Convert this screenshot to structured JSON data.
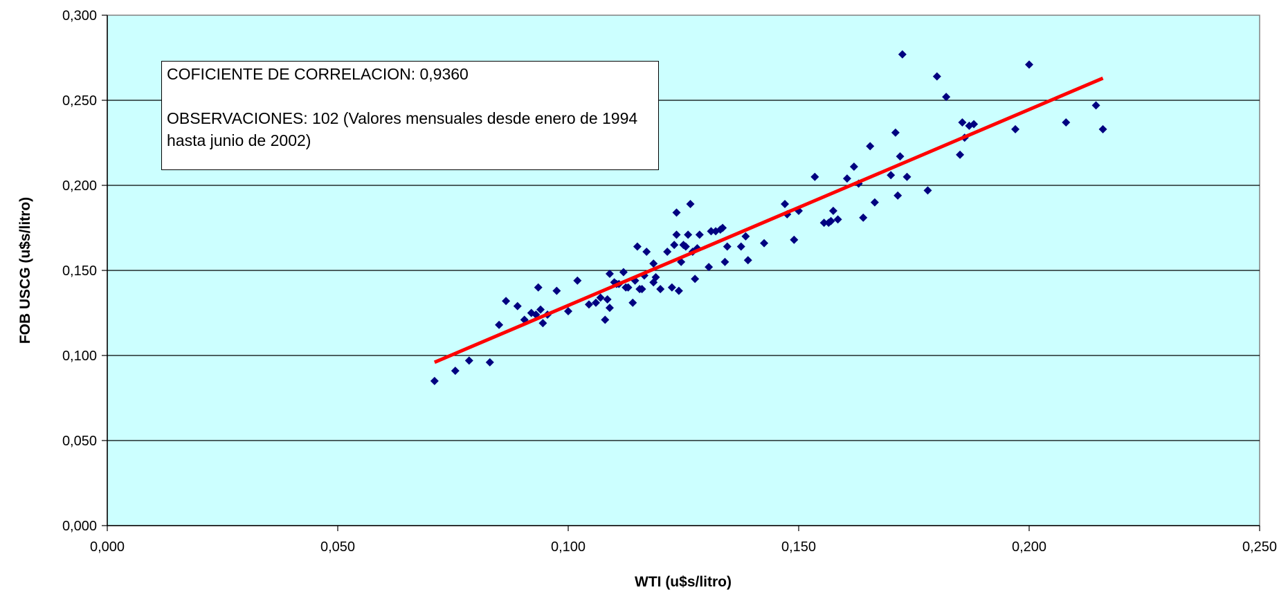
{
  "chart_data": {
    "type": "scatter",
    "xlabel": "WTI (u$s/litro)",
    "ylabel": "FOB USCG (u$s/litro)",
    "xlim": [
      0,
      0.25
    ],
    "ylim": [
      0,
      0.3
    ],
    "x_ticks": [
      "0,000",
      "0,050",
      "0,100",
      "0,150",
      "0,200",
      "0,250"
    ],
    "y_ticks": [
      "0,000",
      "0,050",
      "0,100",
      "0,150",
      "0,200",
      "0,250",
      "0,300"
    ],
    "grid": "horizontal",
    "colors": {
      "plot_background": "#ccffff",
      "points": "#000080",
      "trendline": "#ff0000"
    },
    "annotation": {
      "line1": "COFICIENTE DE CORRELACION: 0,9360",
      "line2": "OBSERVACIONES: 102 (Valores mensuales desde enero de 1994 hasta junio de 2002)"
    },
    "trendline": {
      "x": [
        0.071,
        0.216
      ],
      "y": [
        0.096,
        0.263
      ]
    },
    "series": [
      {
        "points": [
          [
            0.071,
            0.085
          ],
          [
            0.0755,
            0.091
          ],
          [
            0.0785,
            0.097
          ],
          [
            0.083,
            0.096
          ],
          [
            0.085,
            0.118
          ],
          [
            0.0865,
            0.132
          ],
          [
            0.089,
            0.129
          ],
          [
            0.0905,
            0.121
          ],
          [
            0.092,
            0.125
          ],
          [
            0.093,
            0.124
          ],
          [
            0.0935,
            0.14
          ],
          [
            0.094,
            0.127
          ],
          [
            0.0945,
            0.119
          ],
          [
            0.0955,
            0.124
          ],
          [
            0.0975,
            0.138
          ],
          [
            0.1,
            0.126
          ],
          [
            0.102,
            0.144
          ],
          [
            0.1045,
            0.13
          ],
          [
            0.106,
            0.131
          ],
          [
            0.107,
            0.134
          ],
          [
            0.108,
            0.121
          ],
          [
            0.1085,
            0.133
          ],
          [
            0.109,
            0.148
          ],
          [
            0.109,
            0.128
          ],
          [
            0.11,
            0.143
          ],
          [
            0.1105,
            0.142
          ],
          [
            0.111,
            0.142
          ],
          [
            0.112,
            0.149
          ],
          [
            0.1125,
            0.14
          ],
          [
            0.113,
            0.14
          ],
          [
            0.114,
            0.131
          ],
          [
            0.1145,
            0.144
          ],
          [
            0.115,
            0.164
          ],
          [
            0.1155,
            0.139
          ],
          [
            0.116,
            0.139
          ],
          [
            0.1165,
            0.147
          ],
          [
            0.117,
            0.161
          ],
          [
            0.1185,
            0.154
          ],
          [
            0.1185,
            0.143
          ],
          [
            0.119,
            0.146
          ],
          [
            0.12,
            0.139
          ],
          [
            0.1215,
            0.161
          ],
          [
            0.1225,
            0.14
          ],
          [
            0.123,
            0.165
          ],
          [
            0.1235,
            0.171
          ],
          [
            0.1235,
            0.184
          ],
          [
            0.124,
            0.138
          ],
          [
            0.1245,
            0.155
          ],
          [
            0.125,
            0.165
          ],
          [
            0.1255,
            0.164
          ],
          [
            0.126,
            0.171
          ],
          [
            0.1265,
            0.189
          ],
          [
            0.127,
            0.161
          ],
          [
            0.1275,
            0.145
          ],
          [
            0.128,
            0.163
          ],
          [
            0.1285,
            0.171
          ],
          [
            0.1305,
            0.152
          ],
          [
            0.131,
            0.173
          ],
          [
            0.132,
            0.173
          ],
          [
            0.133,
            0.174
          ],
          [
            0.1335,
            0.175
          ],
          [
            0.134,
            0.155
          ],
          [
            0.1345,
            0.164
          ],
          [
            0.1375,
            0.164
          ],
          [
            0.1385,
            0.17
          ],
          [
            0.139,
            0.156
          ],
          [
            0.1425,
            0.166
          ],
          [
            0.147,
            0.189
          ],
          [
            0.1475,
            0.183
          ],
          [
            0.149,
            0.168
          ],
          [
            0.15,
            0.185
          ],
          [
            0.1535,
            0.205
          ],
          [
            0.1565,
            0.178
          ],
          [
            0.157,
            0.179
          ],
          [
            0.1575,
            0.185
          ],
          [
            0.1585,
            0.18
          ],
          [
            0.1605,
            0.204
          ],
          [
            0.162,
            0.211
          ],
          [
            0.163,
            0.201
          ],
          [
            0.164,
            0.181
          ],
          [
            0.1655,
            0.223
          ],
          [
            0.1665,
            0.19
          ],
          [
            0.17,
            0.206
          ],
          [
            0.171,
            0.231
          ],
          [
            0.1715,
            0.194
          ],
          [
            0.172,
            0.217
          ],
          [
            0.1725,
            0.277
          ],
          [
            0.1735,
            0.205
          ],
          [
            0.178,
            0.197
          ],
          [
            0.18,
            0.264
          ],
          [
            0.182,
            0.252
          ],
          [
            0.185,
            0.218
          ],
          [
            0.1855,
            0.237
          ],
          [
            0.186,
            0.228
          ],
          [
            0.187,
            0.235
          ],
          [
            0.188,
            0.236
          ],
          [
            0.197,
            0.233
          ],
          [
            0.2,
            0.271
          ],
          [
            0.208,
            0.237
          ],
          [
            0.2145,
            0.247
          ],
          [
            0.216,
            0.233
          ],
          [
            0.1555,
            0.178
          ]
        ]
      }
    ]
  }
}
